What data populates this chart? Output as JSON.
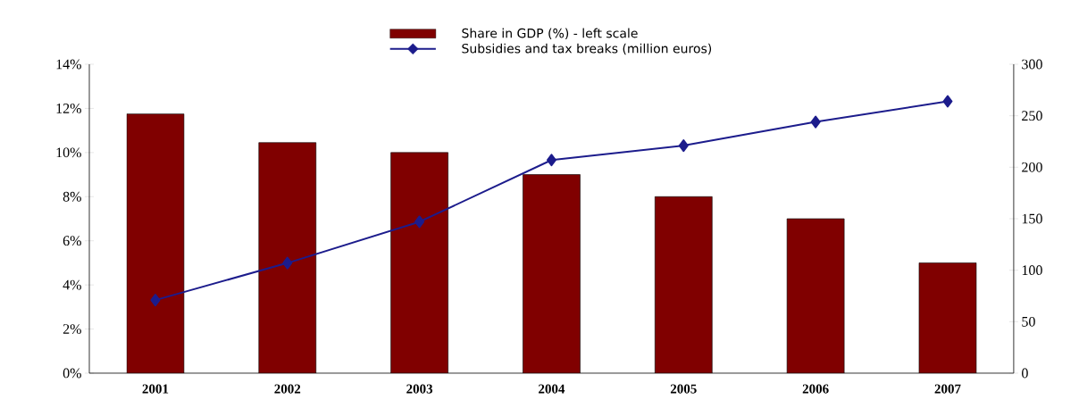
{
  "chart_data": {
    "type": "bar",
    "categories": [
      "2001",
      "2002",
      "2003",
      "2004",
      "2005",
      "2006",
      "2007"
    ],
    "series": [
      {
        "name": "Share in GDP (%) - left scale",
        "color": "#800000",
        "values": [
          11.75,
          10.45,
          10,
          9,
          8,
          7,
          5
        ]
      },
      {
        "name": "Subsidies and tax breaks (million euros)",
        "type": "line",
        "axis": "y2",
        "color": "#1c1c8c",
        "values": [
          71,
          107,
          147,
          207,
          221,
          244,
          264
        ]
      }
    ],
    "ylim": [
      0,
      14
    ],
    "yticks": [
      {
        "value": 0,
        "label": "0%"
      },
      {
        "value": 2,
        "label": "2%"
      },
      {
        "value": 4,
        "label": "4%"
      },
      {
        "value": 6,
        "label": "6%"
      },
      {
        "value": 8,
        "label": "8%"
      },
      {
        "value": 10,
        "label": "10%"
      },
      {
        "value": 12,
        "label": "12%"
      },
      {
        "value": 14,
        "label": "14%"
      }
    ],
    "y2lim": [
      0,
      300
    ],
    "y2ticks": [
      0,
      50,
      100,
      150,
      200,
      250,
      300
    ],
    "legend": "top",
    "marker": "diamond",
    "grid": false
  }
}
